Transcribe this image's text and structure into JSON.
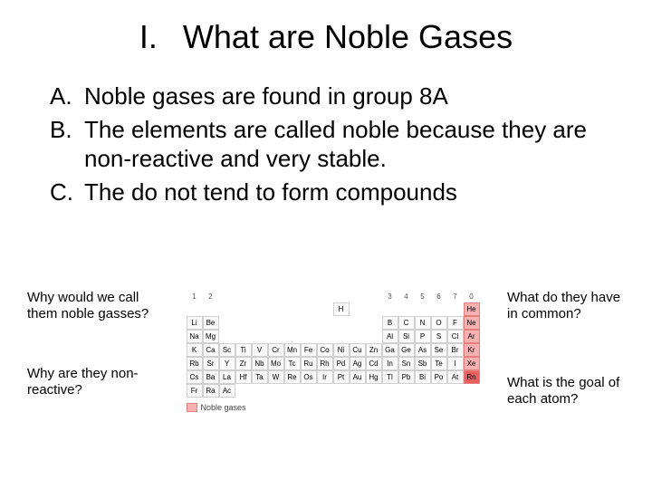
{
  "title": {
    "number": "I.",
    "text": "What are Noble Gases"
  },
  "bullets": [
    {
      "label": "A.",
      "body": "Noble gases are found in group 8A"
    },
    {
      "label": "B.",
      "body": "The elements are called noble because they are non-reactive and very stable."
    },
    {
      "label": "C.",
      "body": "The do not tend to form compounds"
    }
  ],
  "questions": {
    "left1": "Why would we call them noble gasses?",
    "left2": "Why are they non-reactive?",
    "right1": "What do they have in common?",
    "right2": "What is the goal of each atom?"
  },
  "periodic_table": {
    "headers": [
      "1",
      "2",
      "",
      "",
      "",
      "",
      "",
      "",
      "",
      "",
      "",
      "",
      "3",
      "4",
      "5",
      "6",
      "7",
      "0"
    ],
    "rows": [
      [
        "",
        "",
        "",
        "",
        "",
        "",
        "",
        "",
        "",
        "H",
        "",
        "",
        "",
        "",
        "",
        "",
        "",
        "He"
      ],
      [
        "Li",
        "Be",
        "",
        "",
        "",
        "",
        "",
        "",
        "",
        "",
        "",
        "",
        "B",
        "C",
        "N",
        "O",
        "F",
        "Ne"
      ],
      [
        "Na",
        "Mg",
        "",
        "",
        "",
        "",
        "",
        "",
        "",
        "",
        "",
        "",
        "Al",
        "Si",
        "P",
        "S",
        "Cl",
        "Ar"
      ],
      [
        "K",
        "Ca",
        "Sc",
        "Ti",
        "V",
        "Cr",
        "Mn",
        "Fe",
        "Co",
        "Ni",
        "Cu",
        "Zn",
        "Ga",
        "Ge",
        "As",
        "Se",
        "Br",
        "Kr"
      ],
      [
        "Rb",
        "Sr",
        "Y",
        "Zr",
        "Nb",
        "Mo",
        "Tc",
        "Ru",
        "Rh",
        "Pd",
        "Ag",
        "Cd",
        "In",
        "Sn",
        "Sb",
        "Te",
        "I",
        "Xe"
      ],
      [
        "Cs",
        "Ba",
        "La",
        "Hf",
        "Ta",
        "W",
        "Re",
        "Os",
        "Ir",
        "Pt",
        "Au",
        "Hg",
        "Tl",
        "Pb",
        "Bi",
        "Po",
        "At",
        "Rn"
      ],
      [
        "Fr",
        "Ra",
        "Ac",
        "",
        "",
        "",
        "",
        "",
        "",
        "",
        "",
        "",
        "",
        "",
        "",
        "",
        "",
        ""
      ]
    ],
    "noble_column_index": 17,
    "noble_symbols": [
      "He",
      "Ne",
      "Ar",
      "Kr",
      "Xe",
      "Rn"
    ],
    "legend_label": "Noble gases",
    "colors": {
      "cell_bg": "#fafafa",
      "cell_border": "#d0d0d0",
      "noble_bg": "#f9b0b0",
      "noble_border": "#e08080",
      "rn_bg": "#e86060",
      "header_color": "#555555"
    }
  }
}
